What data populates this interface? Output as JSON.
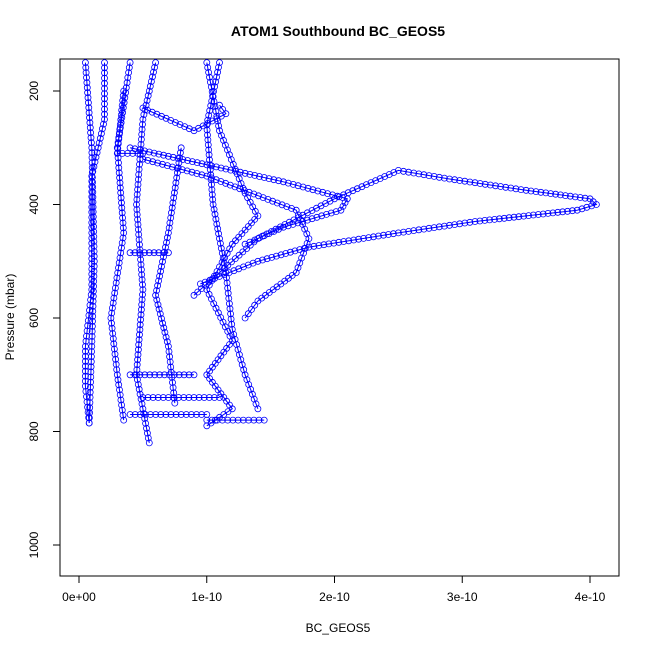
{
  "chart_data": {
    "type": "scatter",
    "title": "ATOM1 Southbound BC_GEOS5",
    "xlabel": "BC_GEOS5",
    "ylabel": "Pressure (mbar)",
    "xlim": [
      0,
      4.1e-10
    ],
    "ylim": [
      1050,
      150
    ],
    "y_reversed": true,
    "x_ticks": [
      0,
      1e-10,
      2e-10,
      3e-10,
      4e-10
    ],
    "x_tick_labels": [
      "0e+00",
      "1e-10",
      "2e-10",
      "3e-10",
      "4e-10"
    ],
    "y_ticks": [
      200,
      400,
      600,
      800,
      1000
    ],
    "y_tick_labels": [
      "200",
      "400",
      "600",
      "800",
      "1000"
    ],
    "marker": "open-circle",
    "line_style": "line+points",
    "color": "#0000ff",
    "grid": false,
    "series": [
      {
        "points": [
          [
            2e-11,
            150
          ],
          [
            2e-11,
            250
          ],
          [
            1e-11,
            350
          ],
          [
            1e-11,
            450
          ],
          [
            1e-11,
            550
          ],
          [
            5e-12,
            650
          ],
          [
            5e-12,
            720
          ],
          [
            8e-12,
            785
          ]
        ]
      },
      {
        "points": [
          [
            5e-12,
            150
          ],
          [
            1e-11,
            300
          ],
          [
            1.2e-11,
            500
          ],
          [
            1e-11,
            650
          ],
          [
            8e-12,
            785
          ]
        ]
      },
      {
        "points": [
          [
            4e-11,
            150
          ],
          [
            3e-11,
            300
          ],
          [
            3.5e-11,
            450
          ],
          [
            2.5e-11,
            600
          ],
          [
            3e-11,
            700
          ],
          [
            3.5e-11,
            780
          ]
        ]
      },
      {
        "points": [
          [
            6e-11,
            150
          ],
          [
            5e-11,
            250
          ],
          [
            4.5e-11,
            400
          ],
          [
            5e-11,
            550
          ],
          [
            4.5e-11,
            700
          ],
          [
            5.5e-11,
            820
          ]
        ]
      },
      {
        "points": [
          [
            3.5e-11,
            200
          ],
          [
            3e-11,
            310
          ],
          [
            5e-11,
            310
          ],
          [
            5e-11,
            320
          ]
        ]
      },
      {
        "points": [
          [
            8e-11,
            300
          ],
          [
            7e-11,
            450
          ],
          [
            6e-11,
            560
          ],
          [
            7e-11,
            650
          ],
          [
            7.5e-11,
            750
          ]
        ]
      },
      {
        "points": [
          [
            1.1e-10,
            150
          ],
          [
            1e-10,
            260
          ],
          [
            1.05e-10,
            400
          ],
          [
            1.15e-10,
            520
          ],
          [
            1.2e-10,
            620
          ],
          [
            1.3e-10,
            700
          ],
          [
            1.4e-10,
            760
          ]
        ]
      },
      {
        "points": [
          [
            1e-10,
            150
          ],
          [
            1.1e-10,
            270
          ],
          [
            1.3e-10,
            380
          ],
          [
            1.4e-10,
            420
          ],
          [
            1.2e-10,
            470
          ],
          [
            1e-10,
            550
          ],
          [
            1.2e-10,
            640
          ],
          [
            1e-10,
            700
          ],
          [
            1.2e-10,
            760
          ],
          [
            1e-10,
            790
          ]
        ]
      },
      {
        "points": [
          [
            5e-11,
            230
          ],
          [
            9e-11,
            270
          ],
          [
            1.15e-10,
            240
          ],
          [
            1.1e-10,
            225
          ]
        ]
      },
      {
        "points": [
          [
            4e-11,
            300
          ],
          [
            1e-10,
            330
          ],
          [
            1.6e-10,
            360
          ],
          [
            2.1e-10,
            390
          ],
          [
            2.05e-10,
            410
          ],
          [
            1.6e-10,
            440
          ],
          [
            1.3e-10,
            470
          ]
        ]
      },
      {
        "points": [
          [
            5e-11,
            320
          ],
          [
            1e-10,
            350
          ],
          [
            1.7e-10,
            410
          ],
          [
            1.8e-10,
            460
          ],
          [
            1.7e-10,
            520
          ],
          [
            1.4e-10,
            570
          ],
          [
            1.3e-10,
            600
          ]
        ]
      },
      {
        "points": [
          [
            9e-11,
            560
          ],
          [
            1.4e-10,
            460
          ],
          [
            2e-10,
            390
          ],
          [
            2.5e-10,
            340
          ],
          [
            2.9e-10,
            355
          ],
          [
            3.5e-10,
            375
          ],
          [
            4e-10,
            390
          ],
          [
            4.05e-10,
            400
          ],
          [
            3.9e-10,
            410
          ],
          [
            3.1e-10,
            430
          ],
          [
            2.5e-10,
            450
          ],
          [
            1.8e-10,
            475
          ],
          [
            1.4e-10,
            500
          ],
          [
            9.5e-11,
            540
          ]
        ]
      },
      {
        "points": [
          [
            4e-11,
            700
          ],
          [
            9e-11,
            700
          ]
        ]
      },
      {
        "points": [
          [
            5e-11,
            740
          ],
          [
            1.1e-10,
            740
          ]
        ]
      },
      {
        "points": [
          [
            1e-10,
            780
          ],
          [
            1.45e-10,
            780
          ]
        ]
      },
      {
        "points": [
          [
            4e-11,
            770
          ],
          [
            1e-10,
            770
          ]
        ]
      },
      {
        "points": [
          [
            4e-11,
            485
          ],
          [
            7e-11,
            485
          ]
        ]
      }
    ]
  }
}
